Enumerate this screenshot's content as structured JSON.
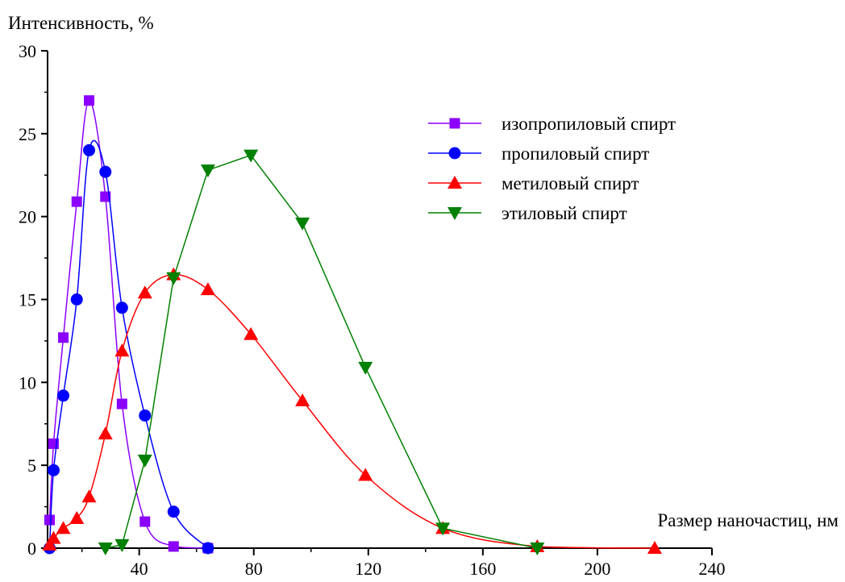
{
  "chart_data": {
    "type": "line",
    "title": "",
    "xlabel": "Размер наночастиц, нм",
    "ylabel": "Интенсивность, %",
    "xlim": [
      8,
      240
    ],
    "ylim": [
      0,
      30
    ],
    "x_ticks": [
      40,
      80,
      120,
      160,
      200,
      240
    ],
    "y_ticks": [
      0,
      5,
      10,
      15,
      20,
      25,
      30
    ],
    "grid": false,
    "legend_position": "top-right",
    "series": [
      {
        "name": "изопропиловый спирт",
        "color": "#8b00ff",
        "marker": "square",
        "x": [
          8.7,
          10.1,
          13.5,
          18.2,
          22.5,
          28.2,
          34,
          42,
          52,
          64
        ],
        "y": [
          1.7,
          6.3,
          12.7,
          20.9,
          27.0,
          21.2,
          8.7,
          1.6,
          0.1,
          0.0
        ]
      },
      {
        "name": "пропиловый спирт",
        "color": "#0000ff",
        "marker": "circle",
        "x": [
          8.7,
          10.1,
          13.5,
          18.2,
          22.5,
          28.2,
          34,
          42,
          52,
          64
        ],
        "y": [
          0.0,
          4.7,
          9.2,
          15.0,
          24.0,
          22.7,
          14.5,
          8.0,
          2.2,
          0.0
        ]
      },
      {
        "name": "метиловый спирт",
        "color": "#ff0000",
        "marker": "triangle-up",
        "x": [
          8.7,
          10.1,
          13.5,
          18.2,
          22.5,
          28.2,
          34,
          42,
          52,
          64,
          79,
          97,
          119,
          146,
          179,
          220
        ],
        "y": [
          0.2,
          0.6,
          1.2,
          1.8,
          3.1,
          6.9,
          11.9,
          15.4,
          16.5,
          15.6,
          12.9,
          8.9,
          4.4,
          1.2,
          0.1,
          0.0
        ]
      },
      {
        "name": "этиловый спирт",
        "color": "#008000",
        "marker": "triangle-down",
        "x": [
          28.2,
          34,
          42,
          52,
          64,
          79,
          97,
          119,
          146,
          179
        ],
        "y": [
          0.0,
          0.2,
          5.3,
          16.3,
          22.8,
          23.7,
          19.6,
          10.9,
          1.2,
          0.0
        ]
      }
    ]
  }
}
